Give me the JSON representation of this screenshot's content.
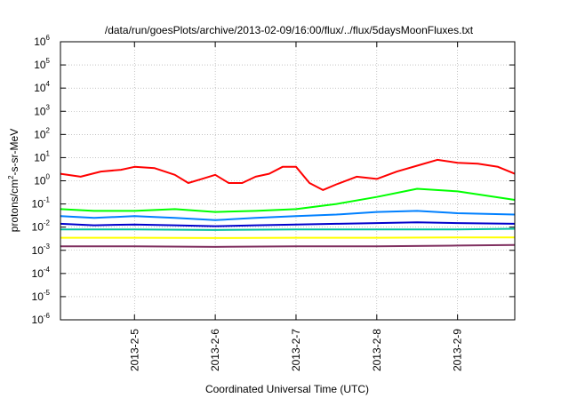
{
  "chart_data": {
    "type": "line",
    "title": "/data/run/goesPlots/archive/2013-02-09/16:00/flux/../flux/5daysMoonFluxes.txt",
    "xlabel": "Coordinated Universal Time (UTC)",
    "ylabel": {
      "base": "protons/cm",
      "sup": "2",
      "rest": "-s-sr-MeV"
    },
    "yscale": "log",
    "ylim": [
      1e-06,
      1000000.0
    ],
    "yticks": [
      {
        "base": "10",
        "exp": "-6",
        "value": 1e-06
      },
      {
        "base": "10",
        "exp": "-5",
        "value": 1e-05
      },
      {
        "base": "10",
        "exp": "-4",
        "value": 0.0001
      },
      {
        "base": "10",
        "exp": "-3",
        "value": 0.001
      },
      {
        "base": "10",
        "exp": "-2",
        "value": 0.01
      },
      {
        "base": "10",
        "exp": "-1",
        "value": 0.1
      },
      {
        "base": "10",
        "exp": "0",
        "value": 1
      },
      {
        "base": "10",
        "exp": "1",
        "value": 10
      },
      {
        "base": "10",
        "exp": "2",
        "value": 100
      },
      {
        "base": "10",
        "exp": "3",
        "value": 1000
      },
      {
        "base": "10",
        "exp": "4",
        "value": 10000
      },
      {
        "base": "10",
        "exp": "5",
        "value": 100000
      },
      {
        "base": "10",
        "exp": "6",
        "value": 1000000
      }
    ],
    "xlim": [
      "2013-02-04T02:00",
      "2013-02-09T17:00"
    ],
    "xticks": [
      {
        "label": "2013-2-5",
        "value": "2013-02-05T00:00"
      },
      {
        "label": "2013-2-6",
        "value": "2013-02-06T00:00"
      },
      {
        "label": "2013-2-7",
        "value": "2013-02-07T00:00"
      },
      {
        "label": "2013-2-8",
        "value": "2013-02-08T00:00"
      },
      {
        "label": "2013-2-9",
        "value": "2013-02-09T00:00"
      }
    ],
    "grid": true,
    "series": [
      {
        "color": "#ff0000",
        "x": [
          "2013-02-04T02:00",
          "2013-02-04T08:00",
          "2013-02-04T14:00",
          "2013-02-04T20:00",
          "2013-02-05T00:00",
          "2013-02-05T06:00",
          "2013-02-05T12:00",
          "2013-02-05T16:00",
          "2013-02-05T20:00",
          "2013-02-06T00:00",
          "2013-02-06T04:00",
          "2013-02-06T08:00",
          "2013-02-06T12:00",
          "2013-02-06T16:00",
          "2013-02-06T20:00",
          "2013-02-07T00:00",
          "2013-02-07T04:00",
          "2013-02-07T08:00",
          "2013-02-07T12:00",
          "2013-02-07T18:00",
          "2013-02-08T00:00",
          "2013-02-08T06:00",
          "2013-02-08T12:00",
          "2013-02-08T18:00",
          "2013-02-09T00:00",
          "2013-02-09T06:00",
          "2013-02-09T12:00",
          "2013-02-09T17:00"
        ],
        "values": [
          2,
          1.5,
          2.5,
          3,
          4,
          3.5,
          1.8,
          0.8,
          1.2,
          1.8,
          0.8,
          0.8,
          1.5,
          2,
          4,
          4,
          0.8,
          0.4,
          0.7,
          1.5,
          1.2,
          2.5,
          4.5,
          8,
          6,
          5.5,
          4,
          2
        ]
      },
      {
        "color": "#00ff00",
        "x": [
          "2013-02-04T02:00",
          "2013-02-04T12:00",
          "2013-02-05T00:00",
          "2013-02-05T12:00",
          "2013-02-06T00:00",
          "2013-02-06T12:00",
          "2013-02-07T00:00",
          "2013-02-07T12:00",
          "2013-02-08T00:00",
          "2013-02-08T12:00",
          "2013-02-09T00:00",
          "2013-02-09T17:00"
        ],
        "values": [
          0.06,
          0.05,
          0.05,
          0.06,
          0.045,
          0.05,
          0.06,
          0.1,
          0.2,
          0.45,
          0.35,
          0.15
        ]
      },
      {
        "color": "#0080ff",
        "x": [
          "2013-02-04T02:00",
          "2013-02-04T12:00",
          "2013-02-05T00:00",
          "2013-02-05T12:00",
          "2013-02-06T00:00",
          "2013-02-06T12:00",
          "2013-02-07T00:00",
          "2013-02-07T12:00",
          "2013-02-08T00:00",
          "2013-02-08T12:00",
          "2013-02-09T00:00",
          "2013-02-09T17:00"
        ],
        "values": [
          0.03,
          0.025,
          0.03,
          0.025,
          0.02,
          0.025,
          0.03,
          0.035,
          0.045,
          0.05,
          0.04,
          0.035
        ]
      },
      {
        "color": "#0000cc",
        "x": [
          "2013-02-04T02:00",
          "2013-02-04T12:00",
          "2013-02-05T00:00",
          "2013-02-05T12:00",
          "2013-02-06T00:00",
          "2013-02-06T12:00",
          "2013-02-07T00:00",
          "2013-02-07T12:00",
          "2013-02-08T00:00",
          "2013-02-08T12:00",
          "2013-02-09T00:00",
          "2013-02-09T17:00"
        ],
        "values": [
          0.014,
          0.012,
          0.013,
          0.012,
          0.011,
          0.012,
          0.013,
          0.014,
          0.015,
          0.016,
          0.015,
          0.014
        ]
      },
      {
        "color": "#00c0a0",
        "x": [
          "2013-02-04T02:00",
          "2013-02-05T00:00",
          "2013-02-06T00:00",
          "2013-02-07T00:00",
          "2013-02-08T00:00",
          "2013-02-09T00:00",
          "2013-02-09T17:00"
        ],
        "values": [
          0.008,
          0.008,
          0.0075,
          0.008,
          0.008,
          0.008,
          0.0085
        ]
      },
      {
        "color": "#ffff00",
        "x": [
          "2013-02-04T02:00",
          "2013-02-05T00:00",
          "2013-02-06T00:00",
          "2013-02-07T00:00",
          "2013-02-08T00:00",
          "2013-02-09T00:00",
          "2013-02-09T17:00"
        ],
        "values": [
          0.0035,
          0.0035,
          0.0034,
          0.0035,
          0.0035,
          0.0036,
          0.0036
        ]
      },
      {
        "color": "#803060",
        "x": [
          "2013-02-04T02:00",
          "2013-02-05T00:00",
          "2013-02-06T00:00",
          "2013-02-07T00:00",
          "2013-02-08T00:00",
          "2013-02-09T00:00",
          "2013-02-09T17:00"
        ],
        "values": [
          0.0015,
          0.0015,
          0.0014,
          0.0015,
          0.0015,
          0.0016,
          0.0017
        ]
      }
    ]
  }
}
